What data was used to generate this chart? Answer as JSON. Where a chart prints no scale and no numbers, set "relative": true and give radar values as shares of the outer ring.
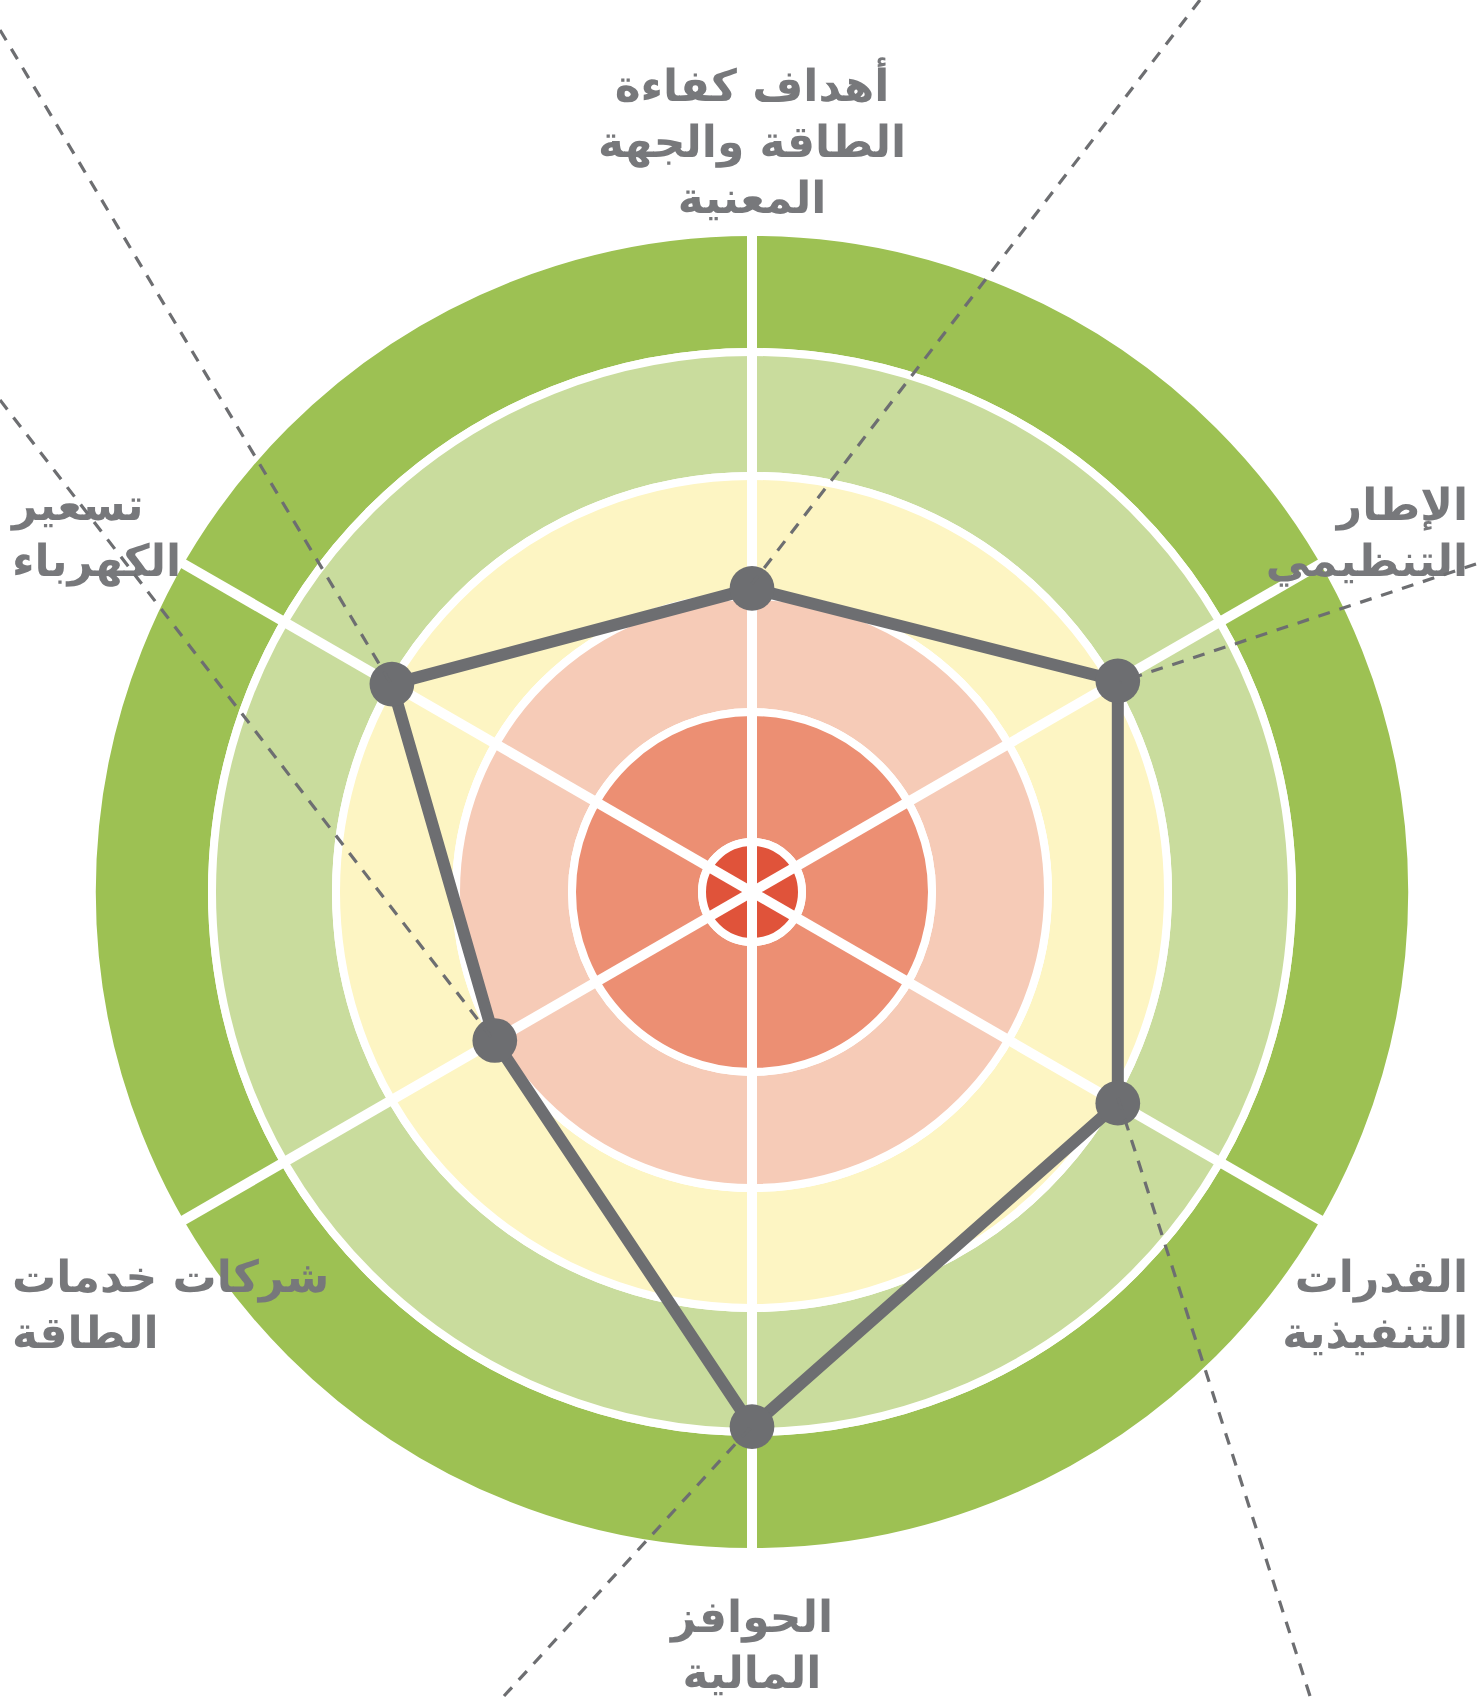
{
  "chart_data": {
    "type": "radar",
    "relative": true,
    "categories": [
      "أهداف كفاءة الطاقة والجهة المعنية",
      "الإطار التنظيمي",
      "القدرات التنفيذية",
      "الحوافز المالية",
      "شركات خدمات الطاقة",
      "تسعير الكهرباء"
    ],
    "series": [
      {
        "color": "#6d6e71",
        "values": [
          0.46,
          0.64,
          0.64,
          0.81,
          0.45,
          0.63
        ]
      }
    ],
    "marker": "circle",
    "line_style": "solid"
  }
}
